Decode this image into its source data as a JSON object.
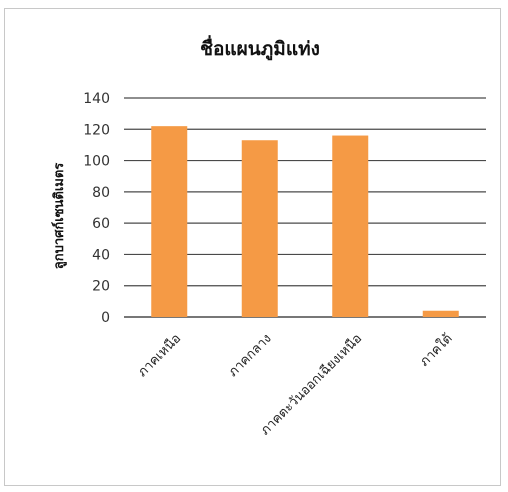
{
  "chart_data": {
    "type": "bar",
    "title": "ชื่อแผนภูมิแท่ง",
    "xlabel": "",
    "ylabel": "ลูกบาศก์เซนติเมตร",
    "categories": [
      "ภาคเหนือ",
      "ภาคกลาง",
      "ภาคตะวันออกเฉียงเหนือ",
      "ภาคใต้"
    ],
    "values": [
      122,
      113,
      116,
      4
    ],
    "ylim": [
      0,
      140
    ],
    "yticks": [
      "0",
      "20",
      "40",
      "60",
      "80",
      "100",
      "120",
      "140"
    ],
    "grid": true,
    "legend": "none",
    "bar_color": "#f59a45",
    "grid_color": "#4a4a4a"
  }
}
